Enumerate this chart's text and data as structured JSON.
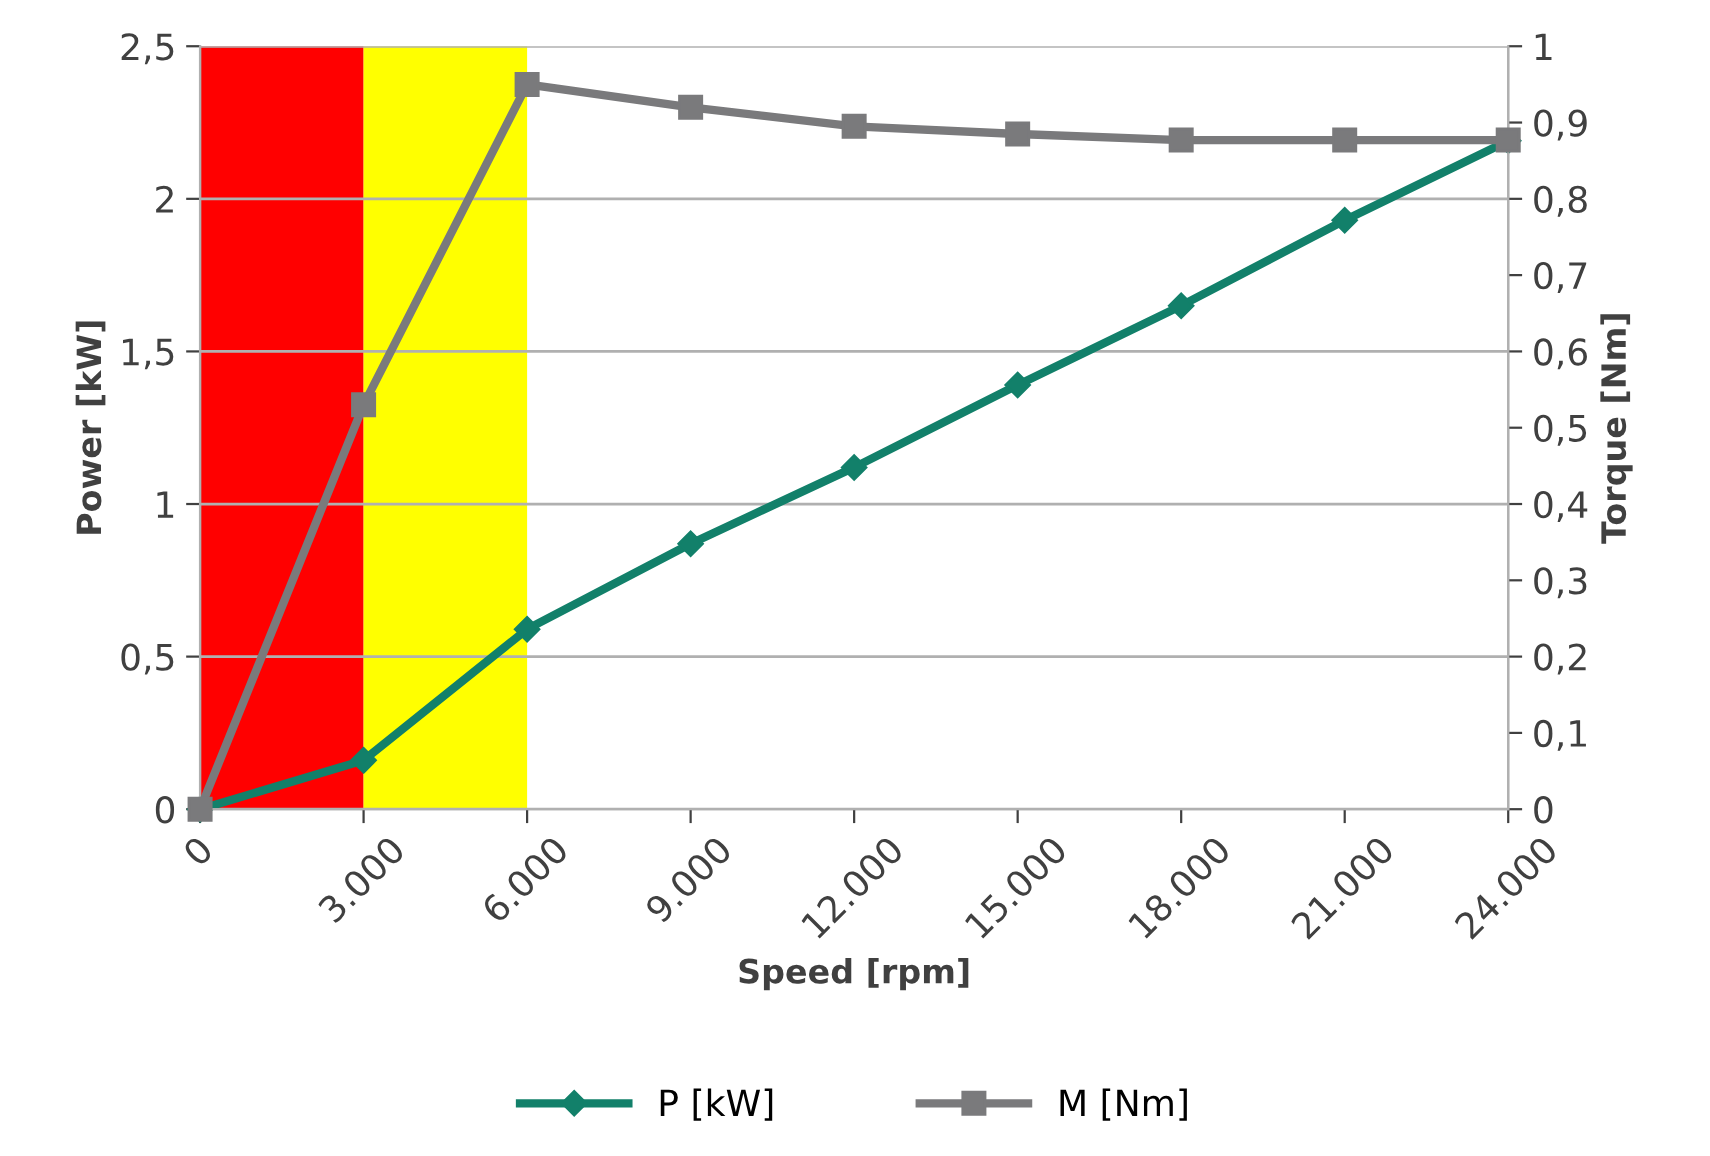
{
  "chart_data": {
    "type": "line",
    "xlabel": "Speed [rpm]",
    "ylabel": "Power [kW]",
    "y2label": "Torque [Nm]",
    "x": [
      0,
      3000,
      6000,
      9000,
      12000,
      15000,
      18000,
      21000,
      24000
    ],
    "series": [
      {
        "name": "P [kW]",
        "color": "#12806a",
        "marker": "diamond",
        "values": [
          0,
          0.16,
          0.59,
          0.87,
          1.12,
          1.39,
          1.65,
          1.93,
          2.19
        ]
      },
      {
        "name": "M [Nm]",
        "color": "#7a7a7c",
        "marker": "square",
        "axis": "y2",
        "values": [
          0,
          0.53,
          0.95,
          0.92,
          0.895,
          0.885,
          0.877,
          0.877,
          0.877
        ]
      }
    ],
    "xlim": [
      0,
      24000
    ],
    "xticks": [
      0,
      {
        "value": 3000,
        "label": "3.000"
      },
      {
        "value": 6000,
        "label": "6.000"
      },
      {
        "value": 9000,
        "label": "9.000"
      },
      {
        "value": 12000,
        "label": "12.000"
      },
      {
        "value": 15000,
        "label": "15.000"
      },
      {
        "value": 18000,
        "label": "18.000"
      },
      {
        "value": 21000,
        "label": "21.000"
      },
      {
        "value": 24000,
        "label": "24.000"
      }
    ],
    "ylim": [
      0,
      2.5
    ],
    "yticks": [
      0,
      {
        "value": 0.5,
        "label": "0,5"
      },
      1,
      {
        "value": 1.5,
        "label": "1,5"
      },
      2,
      {
        "value": 2.5,
        "label": "2,5"
      }
    ],
    "y2lim": [
      0,
      1
    ],
    "y2ticks": [
      0,
      {
        "value": 0.1,
        "label": "0,1"
      },
      {
        "value": 0.2,
        "label": "0,2"
      },
      {
        "value": 0.3,
        "label": "0,3"
      },
      {
        "value": 0.4,
        "label": "0,4"
      },
      {
        "value": 0.5,
        "label": "0,5"
      },
      {
        "value": 0.6,
        "label": "0,6"
      },
      {
        "value": 0.7,
        "label": "0,7"
      },
      {
        "value": 0.8,
        "label": "0,8"
      },
      {
        "value": 0.9,
        "label": "0,9"
      },
      1
    ],
    "bands": [
      {
        "axis": "x",
        "from": 0,
        "to": 3000,
        "color": "#ff0000"
      },
      {
        "axis": "x",
        "from": 3000,
        "to": 6000,
        "color": "#ffff00"
      }
    ],
    "grid": "y",
    "legend": "bottom",
    "line_style": "solid"
  }
}
